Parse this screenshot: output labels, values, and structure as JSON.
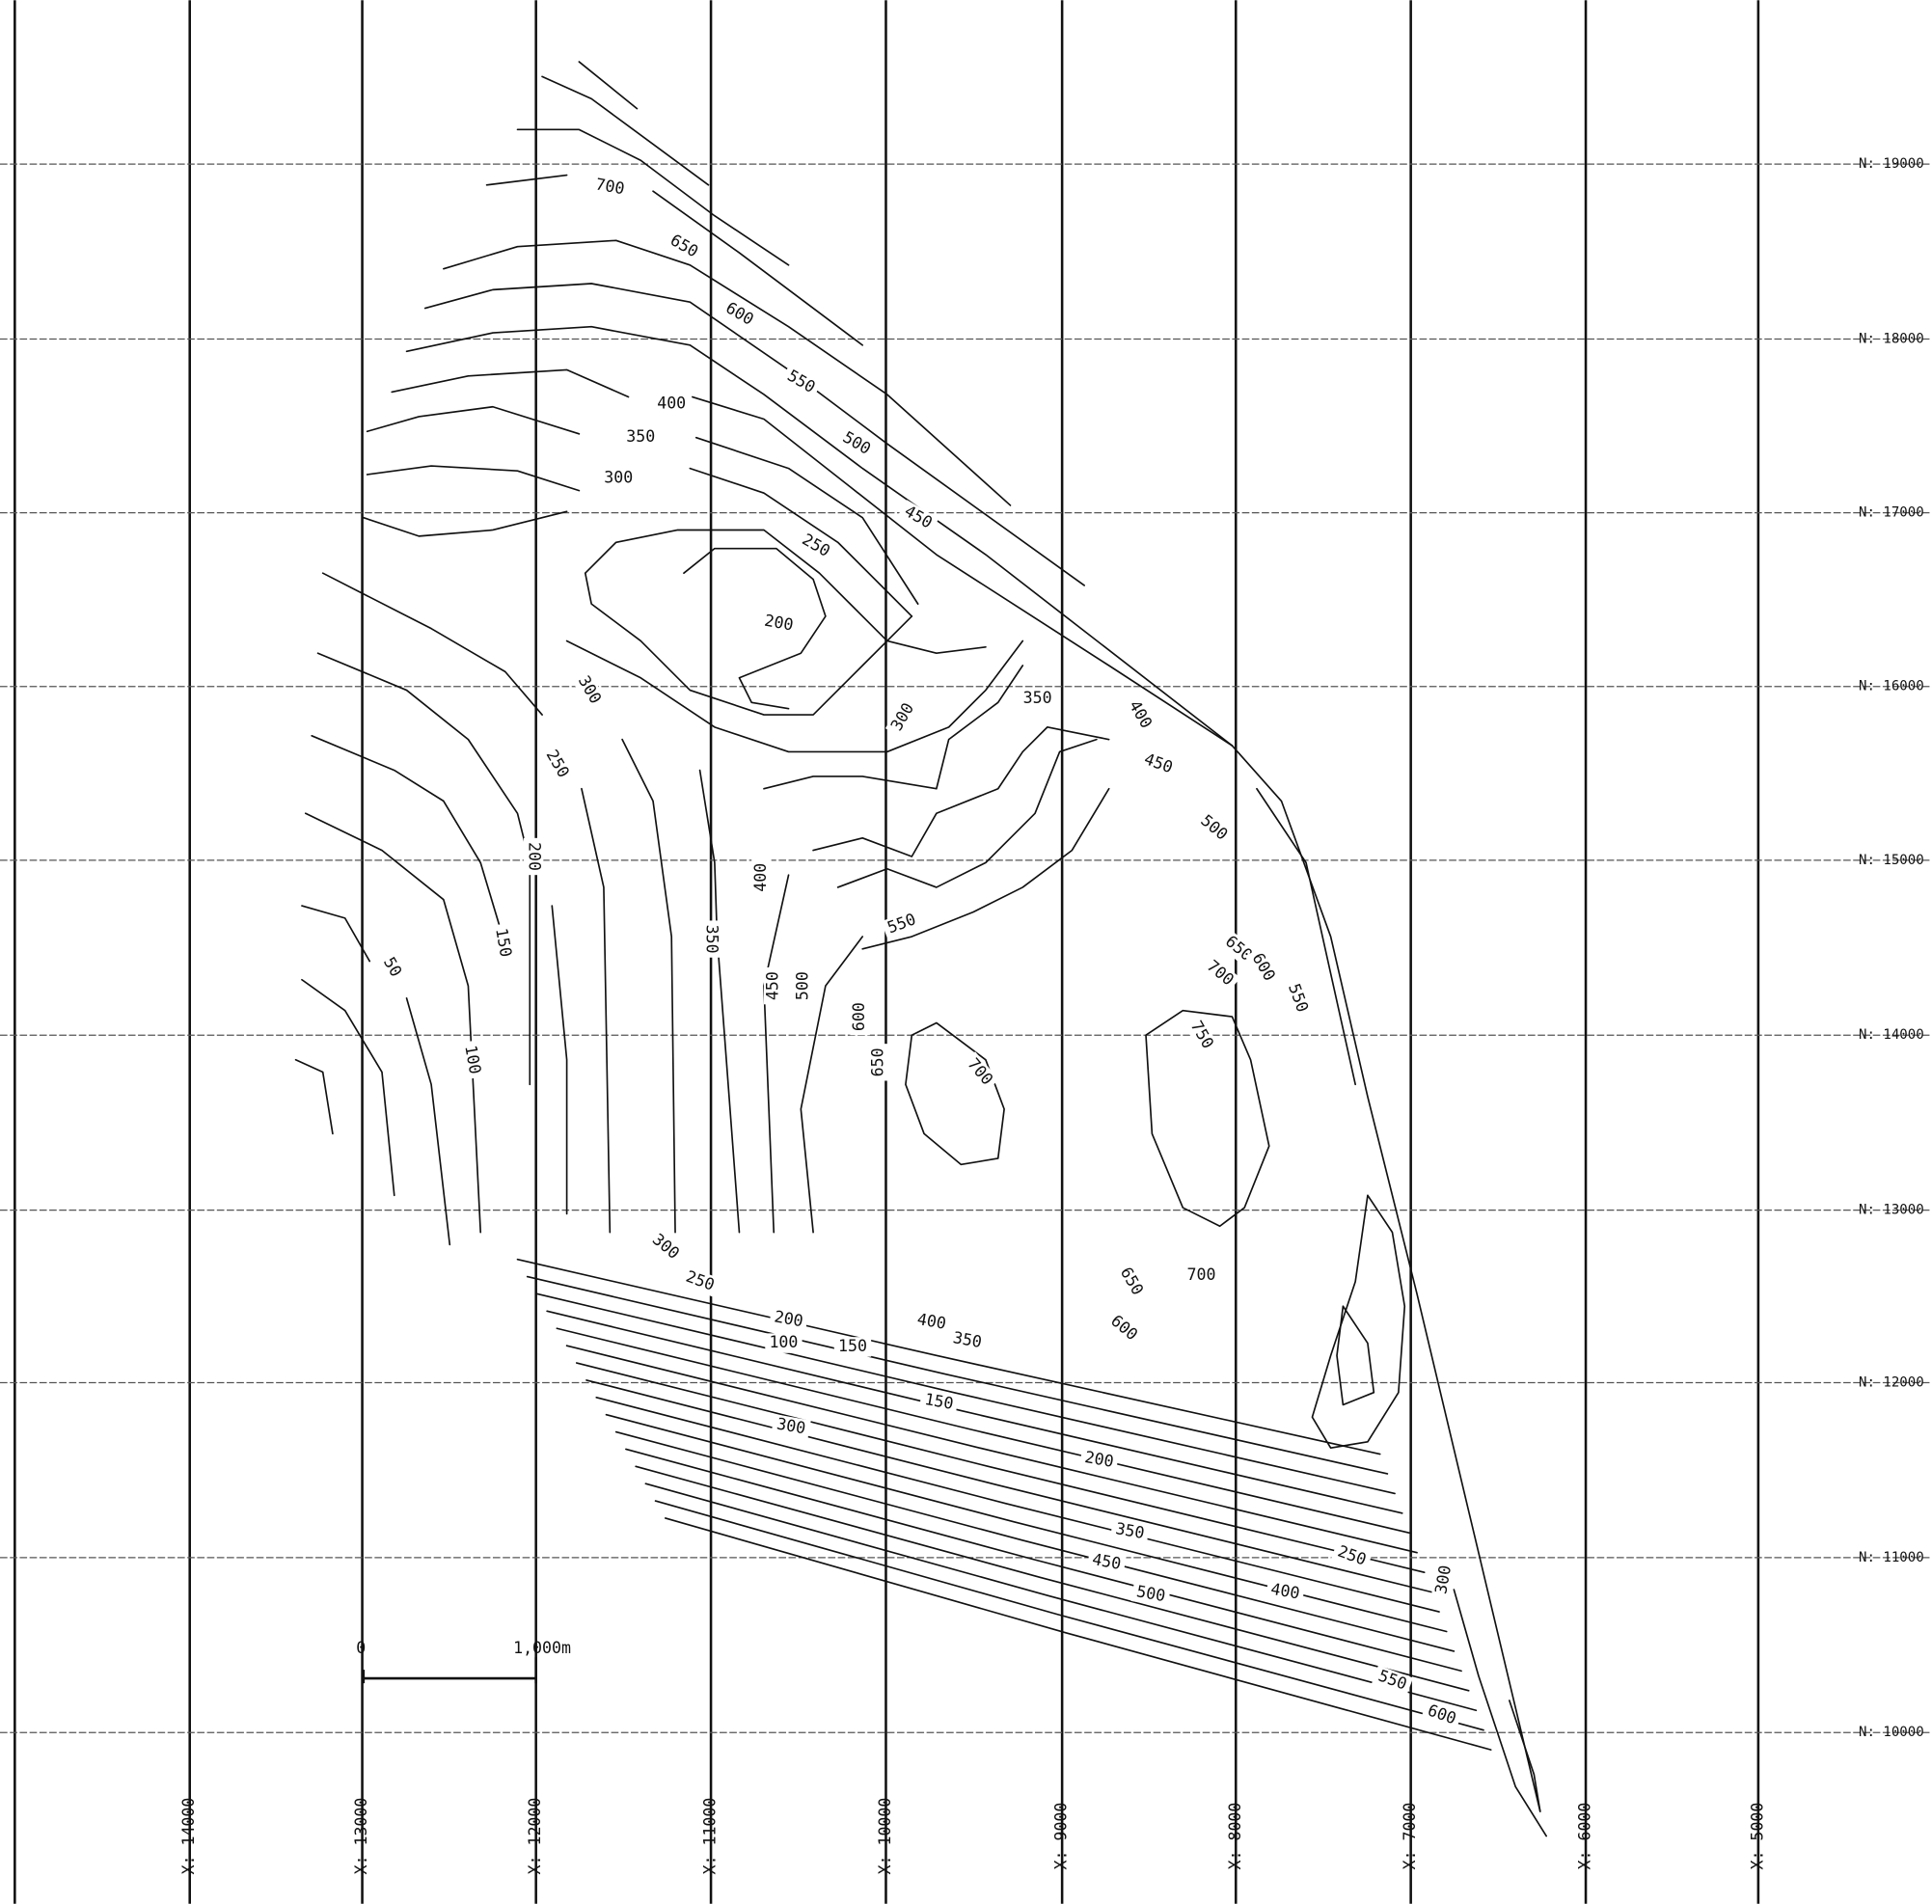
{
  "grid": {
    "northing_labels": [
      "N: 19000",
      "N: 18000",
      "N: 17000",
      "N: 16000",
      "N: 15000",
      "N: 14000",
      "N: 13000",
      "N: 12000",
      "N: 11000",
      "N: 10000"
    ],
    "easting_labels": [
      "X: 14000",
      "X: 13000",
      "X: 12000",
      "X: 11000",
      "X: 10000",
      "X: 9000",
      "X: 8000",
      "X: 7000",
      "X: 6000",
      "X: 5000"
    ]
  },
  "scale_bar": {
    "start": "0",
    "end": "1,000m"
  },
  "contour_labels": [
    "700",
    "650",
    "600",
    "550",
    "500",
    "450",
    "400",
    "350",
    "300",
    "250",
    "200",
    "300",
    "250",
    "200",
    "150",
    "50",
    "100",
    "350",
    "400",
    "450",
    "500",
    "300",
    "400",
    "350",
    "450",
    "500",
    "550",
    "600",
    "650",
    "700",
    "750",
    "700",
    "650",
    "600",
    "550",
    "300",
    "250",
    "200",
    "100",
    "150",
    "400",
    "350",
    "650",
    "700",
    "600",
    "150",
    "300",
    "200",
    "350",
    "450",
    "500",
    "400",
    "250",
    "300",
    "550",
    "600"
  ]
}
